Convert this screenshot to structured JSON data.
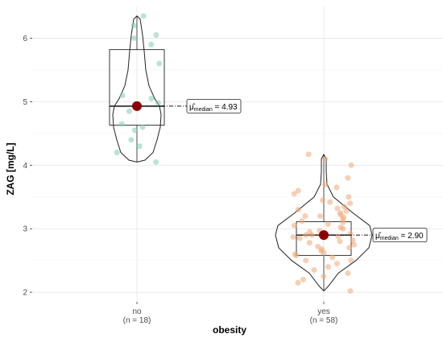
{
  "chart_data": {
    "type": "violin-box-scatter",
    "xlabel": "obesity",
    "ylabel": "ZAG [mg/L]",
    "ylim": [
      1.85,
      6.5
    ],
    "yticks": [
      2,
      3,
      4,
      5,
      6
    ],
    "grid": true,
    "groups": [
      {
        "key": "no",
        "label": "no",
        "n_label": "(n = 18)",
        "color": "#7fcdb3",
        "median": 4.93,
        "mean_label_prefix": "μ̂",
        "mean_label_sub": "median",
        "mean_label_value": "= 4.93",
        "box": {
          "q1": 4.63,
          "median": 4.93,
          "q3": 5.82
        },
        "violin_range": [
          4.05,
          6.35
        ],
        "points": [
          4.05,
          4.2,
          4.3,
          4.4,
          4.55,
          4.6,
          4.65,
          4.85,
          4.93,
          4.98,
          5.05,
          5.1,
          5.6,
          5.9,
          6.0,
          6.05,
          6.2,
          6.35
        ]
      },
      {
        "key": "yes",
        "label": "yes",
        "n_label": "(n = 58)",
        "color": "#f0a877",
        "median": 2.9,
        "mean_label_prefix": "μ̂",
        "mean_label_sub": "median",
        "mean_label_value": "= 2.90",
        "box": {
          "q1": 2.58,
          "median": 2.9,
          "q3": 3.11
        },
        "violin_range": [
          2.02,
          4.17
        ],
        "points": [
          2.02,
          2.15,
          2.2,
          2.25,
          2.3,
          2.35,
          2.4,
          2.45,
          2.5,
          2.5,
          2.55,
          2.58,
          2.6,
          2.62,
          2.65,
          2.68,
          2.7,
          2.72,
          2.75,
          2.78,
          2.8,
          2.82,
          2.85,
          2.87,
          2.88,
          2.9,
          2.9,
          2.92,
          2.95,
          2.97,
          3.0,
          3.02,
          3.05,
          3.07,
          3.1,
          3.12,
          3.15,
          3.18,
          3.2,
          3.2,
          3.22,
          3.25,
          3.28,
          3.3,
          3.32,
          3.35,
          3.4,
          3.42,
          3.45,
          3.5,
          3.55,
          3.6,
          3.65,
          3.7,
          3.8,
          4.0,
          4.1,
          4.17
        ]
      }
    ],
    "mean_point_color": "#8b0000"
  }
}
